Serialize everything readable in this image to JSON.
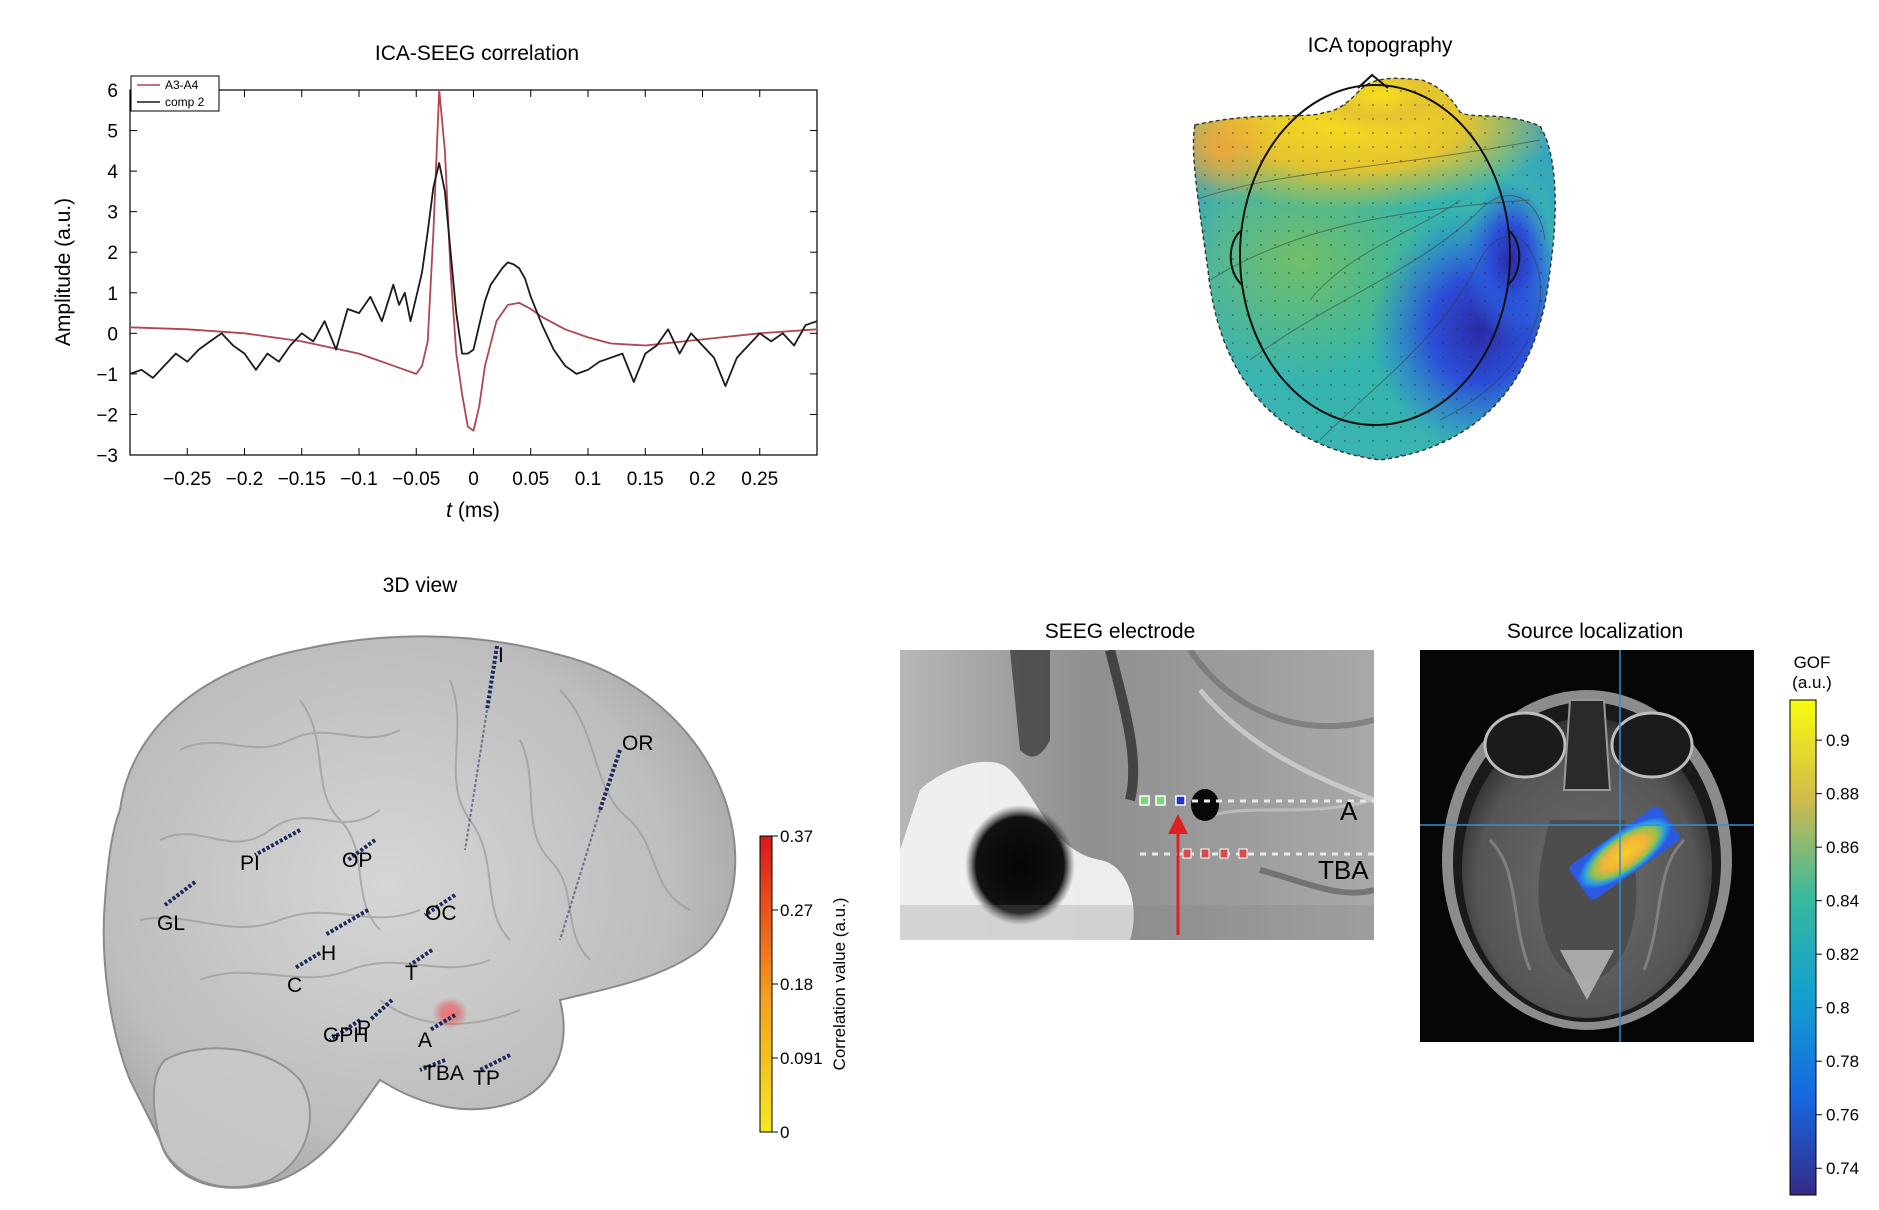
{
  "panels": {
    "correlation": {
      "title": "ICA-SEEG correlation",
      "ylabel": "Amplitude (a.u.)",
      "xlabel_var": "t",
      "xlabel_unit": " (ms)",
      "legend": [
        "A3-A4",
        "comp 2"
      ]
    },
    "topography": {
      "title": "ICA topography"
    },
    "view3d": {
      "title": "3D view",
      "electrodes": [
        "I",
        "OR",
        "PI",
        "OP",
        "GL",
        "OC",
        "H",
        "C",
        "T",
        "GPH",
        "P",
        "A",
        "TBA",
        "TP"
      ],
      "colorbar_label": "Correlation value (a.u.)",
      "colorbar_ticks": [
        "0.37",
        "0.27",
        "0.18",
        "0.091",
        "0"
      ]
    },
    "seeg": {
      "title": "SEEG electrode",
      "labels": [
        "A",
        "TBA"
      ]
    },
    "source": {
      "title": "Source localization",
      "colorbar_title": "GOF",
      "colorbar_unit": "(a.u.)",
      "colorbar_ticks": [
        "0.9",
        "0.88",
        "0.86",
        "0.84",
        "0.82",
        "0.8",
        "0.78",
        "0.76",
        "0.74"
      ]
    }
  },
  "chart_data": {
    "type": "line",
    "title": "ICA-SEEG correlation",
    "xlabel": "t (ms)",
    "ylabel": "Amplitude (a.u.)",
    "xlim": [
      -0.3,
      0.3
    ],
    "ylim": [
      -3,
      6
    ],
    "xticks": [
      -0.25,
      -0.2,
      -0.15,
      -0.1,
      -0.05,
      0,
      0.05,
      0.1,
      0.15,
      0.2,
      0.25
    ],
    "xtick_labels": [
      "−0.25",
      "−0.2",
      "−0.15",
      "−0.1",
      "−0.05",
      "0",
      "0.05",
      "0.1",
      "0.15",
      "0.2",
      "0.25"
    ],
    "yticks": [
      -3,
      -2,
      -1,
      0,
      1,
      2,
      3,
      4,
      5,
      6
    ],
    "ytick_labels": [
      "−3",
      "−2",
      "−1",
      "0",
      "1",
      "2",
      "3",
      "4",
      "5",
      "6"
    ],
    "legend_position": "top-left",
    "series": [
      {
        "name": "A3-A4",
        "color": "#b2454f",
        "x": [
          -0.3,
          -0.25,
          -0.2,
          -0.15,
          -0.1,
          -0.08,
          -0.06,
          -0.05,
          -0.045,
          -0.04,
          -0.035,
          -0.03,
          -0.025,
          -0.02,
          -0.015,
          -0.01,
          -0.005,
          0,
          0.005,
          0.01,
          0.02,
          0.03,
          0.04,
          0.05,
          0.06,
          0.08,
          0.1,
          0.12,
          0.15,
          0.2,
          0.25,
          0.3
        ],
        "y": [
          0.15,
          0.1,
          0.0,
          -0.2,
          -0.5,
          -0.7,
          -0.9,
          -1.0,
          -0.8,
          -0.2,
          2.5,
          6.0,
          4.5,
          1.5,
          -0.5,
          -1.5,
          -2.3,
          -2.4,
          -1.8,
          -0.8,
          0.3,
          0.7,
          0.75,
          0.6,
          0.4,
          0.1,
          -0.1,
          -0.25,
          -0.3,
          -0.15,
          0.0,
          0.1
        ]
      },
      {
        "name": "comp 2",
        "color": "#1a1a1a",
        "x": [
          -0.3,
          -0.29,
          -0.28,
          -0.27,
          -0.26,
          -0.25,
          -0.24,
          -0.23,
          -0.22,
          -0.21,
          -0.2,
          -0.19,
          -0.18,
          -0.17,
          -0.16,
          -0.15,
          -0.14,
          -0.13,
          -0.12,
          -0.11,
          -0.1,
          -0.09,
          -0.08,
          -0.07,
          -0.065,
          -0.06,
          -0.055,
          -0.05,
          -0.045,
          -0.04,
          -0.035,
          -0.03,
          -0.025,
          -0.02,
          -0.015,
          -0.01,
          -0.005,
          0,
          0.005,
          0.01,
          0.015,
          0.02,
          0.025,
          0.03,
          0.035,
          0.04,
          0.045,
          0.05,
          0.06,
          0.07,
          0.08,
          0.09,
          0.1,
          0.11,
          0.12,
          0.13,
          0.14,
          0.15,
          0.16,
          0.17,
          0.18,
          0.19,
          0.2,
          0.21,
          0.22,
          0.23,
          0.24,
          0.25,
          0.26,
          0.27,
          0.28,
          0.29,
          0.3
        ],
        "y": [
          -1.0,
          -0.9,
          -1.1,
          -0.8,
          -0.5,
          -0.7,
          -0.4,
          -0.2,
          0.0,
          -0.3,
          -0.5,
          -0.9,
          -0.5,
          -0.7,
          -0.3,
          0.0,
          -0.2,
          0.3,
          -0.4,
          0.6,
          0.5,
          0.9,
          0.3,
          1.2,
          0.7,
          1.0,
          0.3,
          0.9,
          1.5,
          2.5,
          3.6,
          4.2,
          3.5,
          2.0,
          0.5,
          -0.5,
          -0.5,
          -0.4,
          0.2,
          0.8,
          1.2,
          1.4,
          1.6,
          1.75,
          1.7,
          1.6,
          1.35,
          0.9,
          0.2,
          -0.4,
          -0.8,
          -1.0,
          -0.9,
          -0.7,
          -0.6,
          -0.5,
          -1.2,
          -0.5,
          -0.3,
          0.1,
          -0.5,
          0.0,
          -0.3,
          -0.6,
          -1.3,
          -0.6,
          -0.3,
          0.0,
          -0.2,
          0.0,
          -0.3,
          0.2,
          0.3
        ]
      }
    ]
  }
}
